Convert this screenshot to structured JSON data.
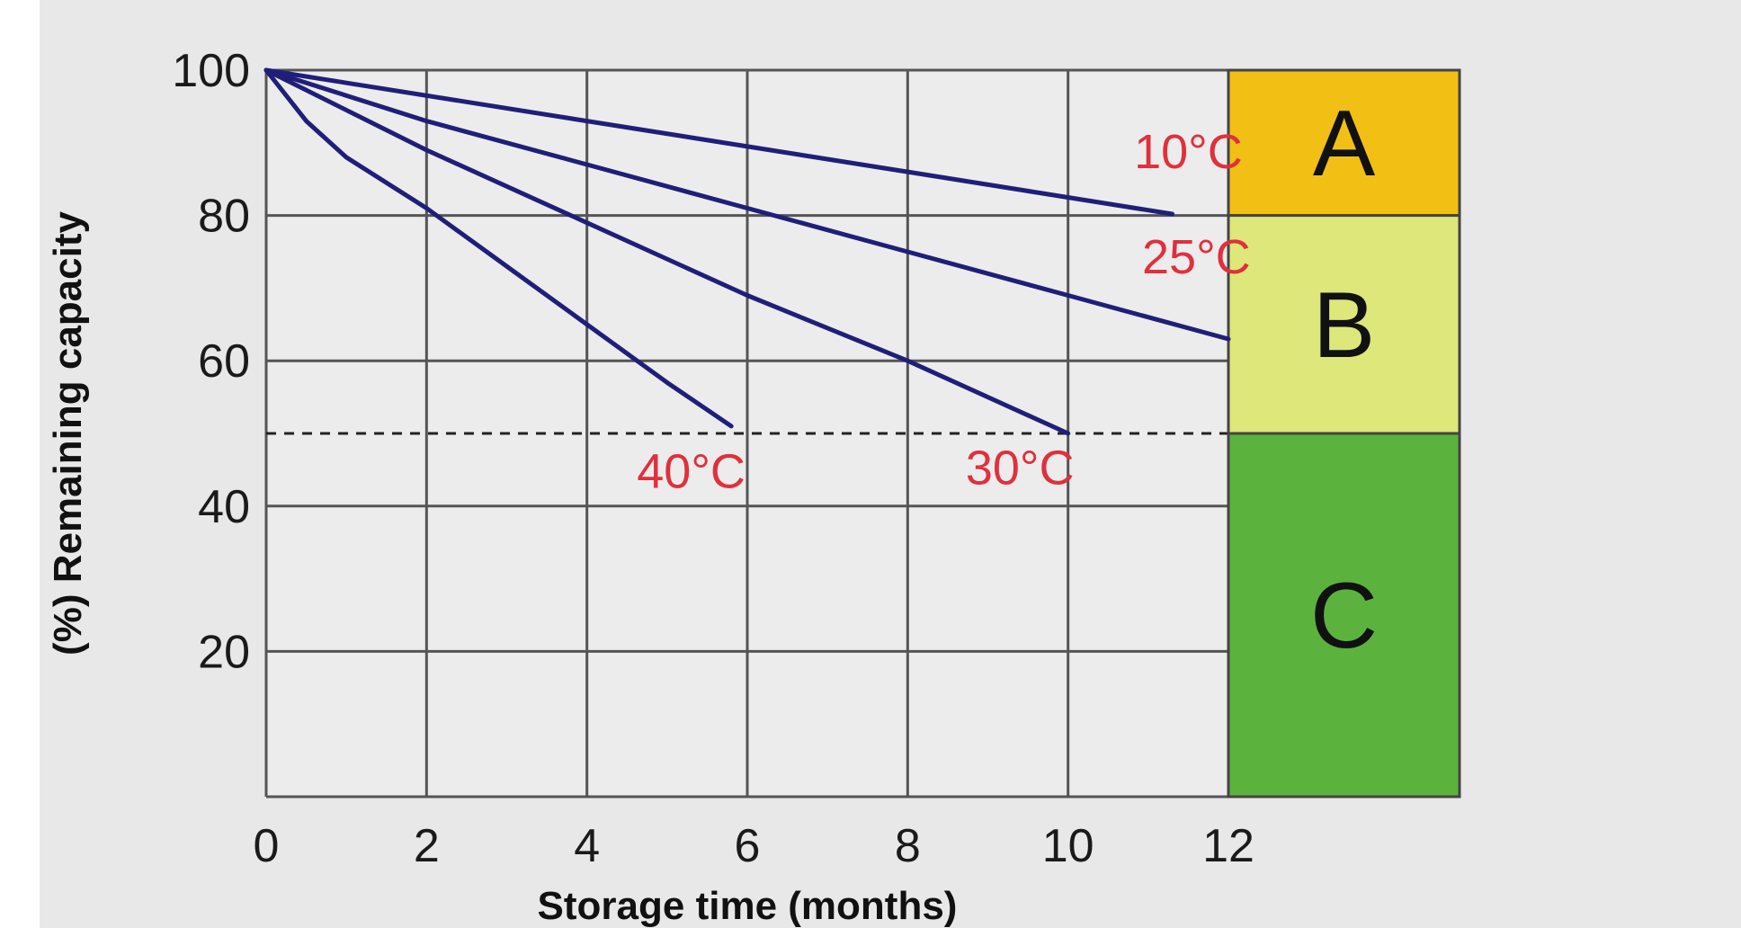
{
  "chart_data": {
    "type": "line",
    "xlabel": "Storage time (months)",
    "ylabel": "(%) Remaining capacity",
    "xlim": [
      0,
      12
    ],
    "ylim": [
      0,
      100
    ],
    "x_ticks": [
      "0",
      "2",
      "4",
      "6",
      "8",
      "10",
      "12"
    ],
    "y_ticks": [
      "20",
      "40",
      "60",
      "80",
      "100"
    ],
    "grid": true,
    "reference_line": {
      "y": 50,
      "style": "dashed"
    },
    "series": [
      {
        "name": "10°C",
        "x": [
          0,
          4,
          8,
          11.3
        ],
        "y": [
          100,
          93,
          86,
          80.2
        ]
      },
      {
        "name": "25°C",
        "x": [
          0,
          2,
          4,
          6,
          8,
          10,
          12
        ],
        "y": [
          100,
          93,
          87,
          81,
          75,
          69,
          63
        ]
      },
      {
        "name": "30°C",
        "x": [
          0,
          2,
          4,
          6,
          8,
          10
        ],
        "y": [
          100,
          89,
          79,
          69,
          60,
          50
        ]
      },
      {
        "name": "40°C",
        "x": [
          0,
          0.5,
          1,
          2,
          3,
          4,
          5,
          5.8
        ],
        "y": [
          100,
          93,
          88,
          81,
          73,
          65,
          57,
          51
        ]
      }
    ],
    "zones": [
      {
        "label": "A",
        "y_from": 80,
        "y_to": 100,
        "color": "#f2c014"
      },
      {
        "label": "B",
        "y_from": 50,
        "y_to": 80,
        "color": "#dde77a"
      },
      {
        "label": "C",
        "y_from": 0,
        "y_to": 50,
        "color": "#5bb33e"
      }
    ],
    "colors": {
      "line": "#1f1f7a",
      "series_label": "#e0303c",
      "grid": "#555555",
      "background": "#e8e8e8",
      "plot_background": "#ececec"
    }
  }
}
